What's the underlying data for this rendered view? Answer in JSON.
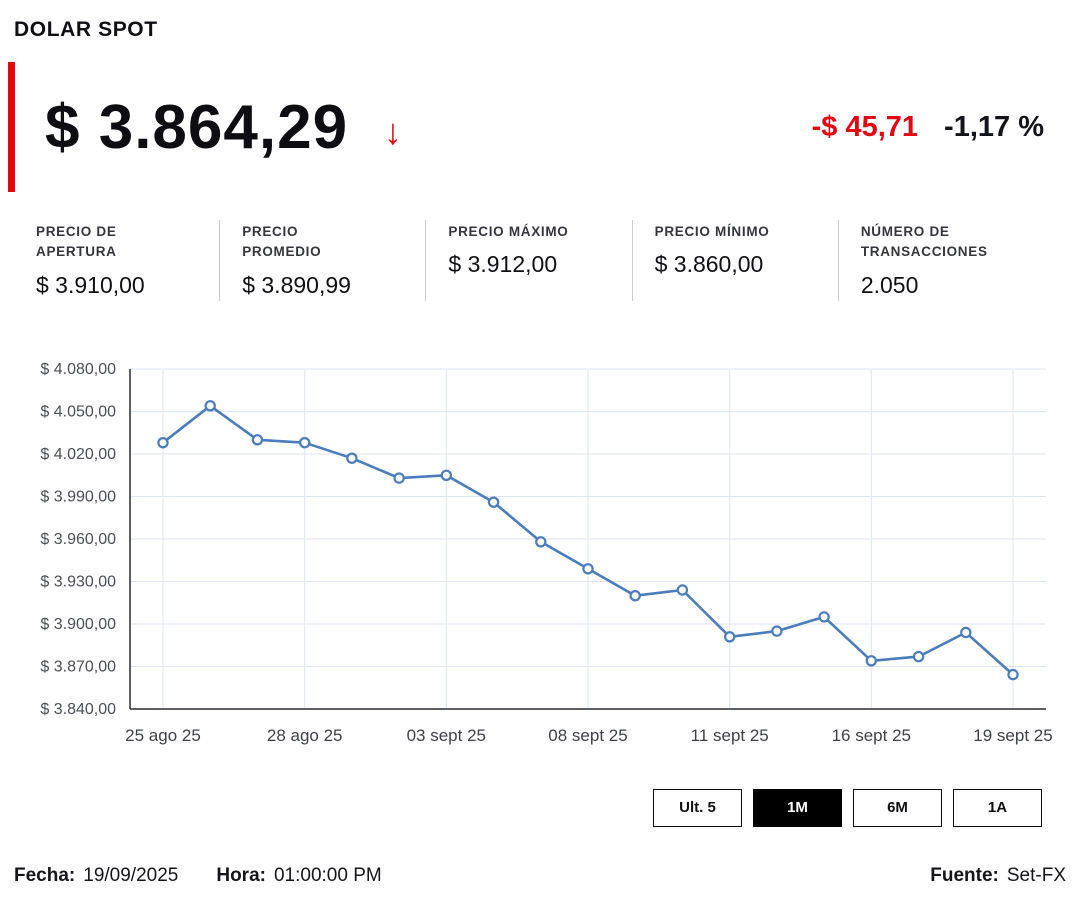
{
  "accent_red": "#e30613",
  "header": {
    "title": "DOLAR SPOT"
  },
  "quote": {
    "price": "$ 3.864,29",
    "direction_icon": "↓",
    "change_abs": "-$ 45,71",
    "change_pct": "-1,17 %"
  },
  "stats": [
    {
      "label": "PRECIO DE\nAPERTURA",
      "value": "$ 3.910,00"
    },
    {
      "label": "PRECIO\nPROMEDIO",
      "value": "$ 3.890,99"
    },
    {
      "label": "PRECIO MÁXIMO",
      "value": "$ 3.912,00"
    },
    {
      "label": "PRECIO MÍNIMO",
      "value": "$ 3.860,00"
    },
    {
      "label": "NÚMERO DE\nTRANSACCIONES",
      "value": "2.050"
    }
  ],
  "chart_data": {
    "type": "line",
    "title": "",
    "xlabel": "",
    "ylabel": "",
    "series": [
      {
        "name": "Dolar spot",
        "values": [
          4028,
          4054,
          4030,
          4028,
          4017,
          4003,
          4005,
          3986,
          3958,
          3939,
          3920,
          3924,
          3891,
          3895,
          3905,
          3874,
          3877,
          3894,
          3864.29
        ]
      }
    ],
    "x_tick_labels": [
      "25 ago 25",
      "28 ago 25",
      "03 sept 25",
      "08 sept 25",
      "11 sept 25",
      "16 sept 25",
      "19 sept 25"
    ],
    "x_tick_indices": [
      0,
      3,
      6,
      9,
      12,
      15,
      18
    ],
    "y_ticks": [
      3840,
      3870,
      3900,
      3930,
      3960,
      3990,
      4020,
      4050,
      4080
    ],
    "y_tick_labels": [
      "$ 3.840,00",
      "$ 3.870,00",
      "$ 3.900,00",
      "$ 3.930,00",
      "$ 3.960,00",
      "$ 3.990,00",
      "$ 4.020,00",
      "$ 4.050,00",
      "$ 4.080,00"
    ],
    "ylim": [
      3840,
      4080
    ],
    "grid": true,
    "legend": "none",
    "line_color": "#4a7cbe",
    "grid_color": "#dee5f2",
    "axis_color": "#2a2c33",
    "marker_fill": "#ffffff"
  },
  "range_buttons": [
    {
      "label": "Ult. 5",
      "active": false
    },
    {
      "label": "1M",
      "active": true
    },
    {
      "label": "6M",
      "active": false
    },
    {
      "label": "1A",
      "active": false
    }
  ],
  "footer": {
    "date_label": "Fecha:",
    "date_value": "19/09/2025",
    "time_label": "Hora:",
    "time_value": "01:00:00 PM",
    "source_label": "Fuente:",
    "source_value": "Set-FX"
  }
}
